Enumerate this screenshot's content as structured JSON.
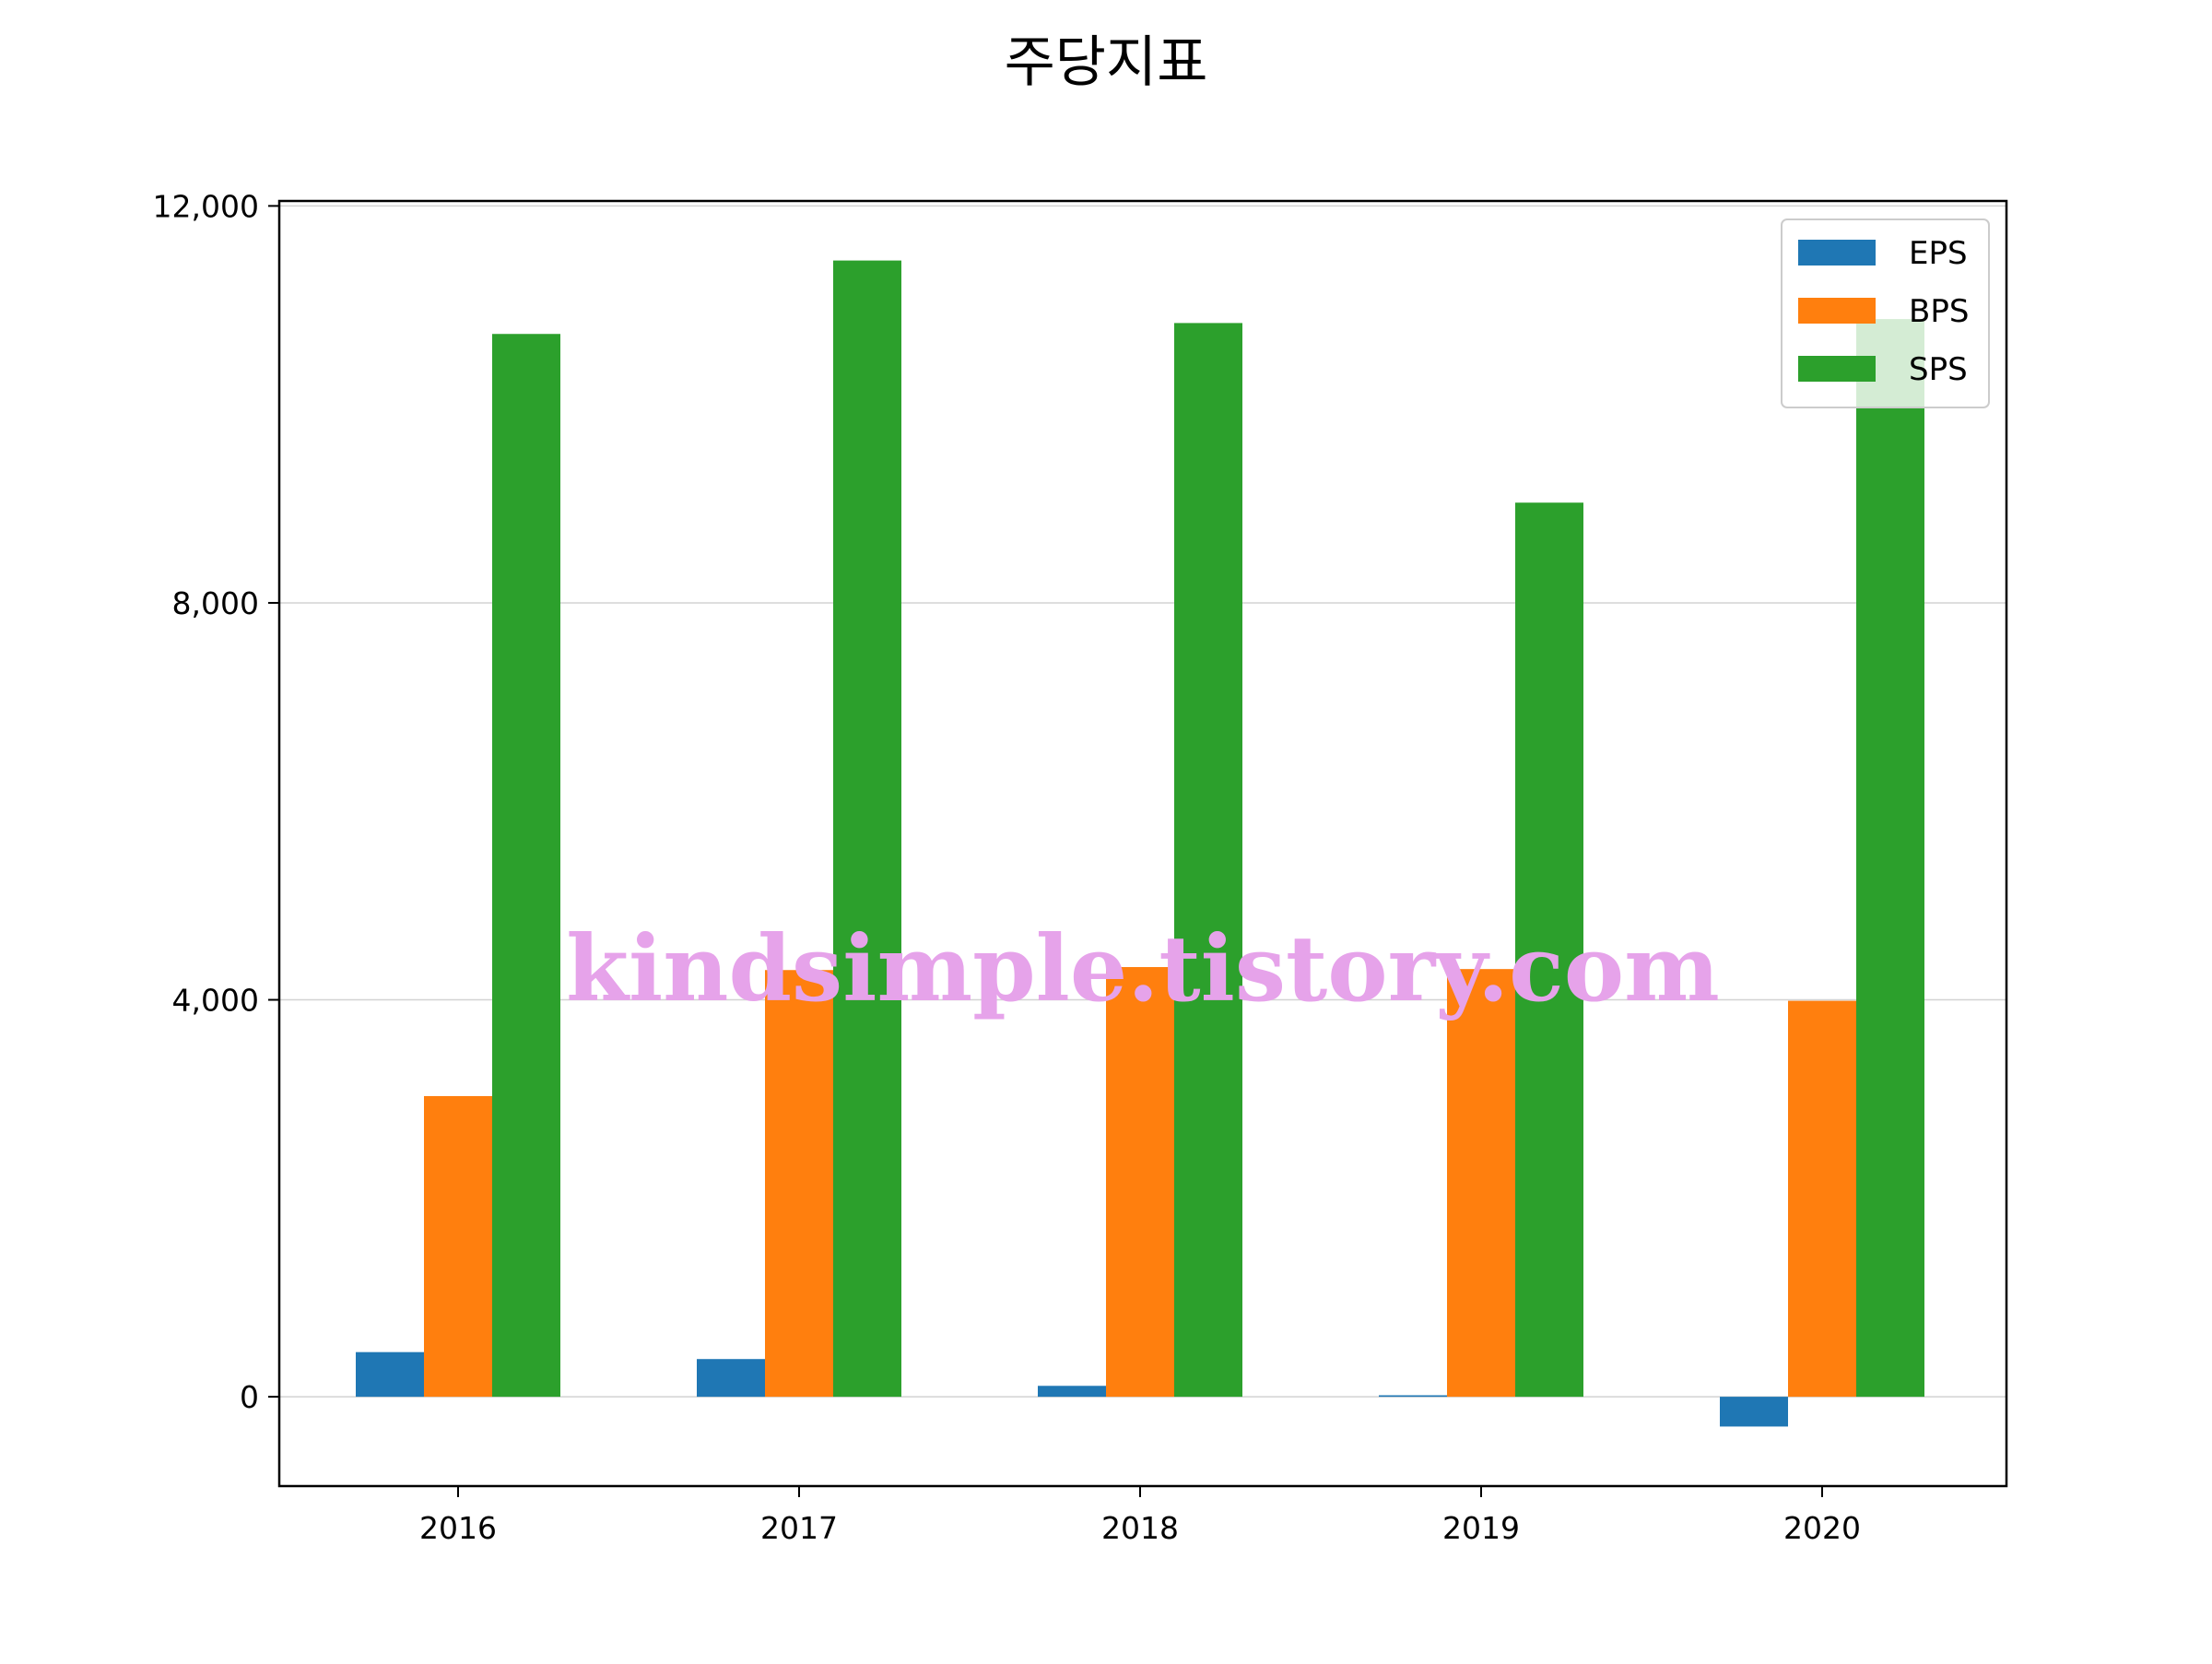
{
  "chart_data": {
    "type": "bar",
    "title": "주당지표",
    "xlabel": "",
    "ylabel": "",
    "categories": [
      "2016",
      "2017",
      "2018",
      "2019",
      "2020"
    ],
    "series": [
      {
        "name": "EPS",
        "color": "#1f77b4",
        "values": [
          450,
          380,
          110,
          15,
          -300
        ]
      },
      {
        "name": "BPS",
        "color": "#ff7f0e",
        "values": [
          3030,
          4300,
          4330,
          4310,
          3990
        ]
      },
      {
        "name": "SPS",
        "color": "#2ca02c",
        "values": [
          10710,
          11450,
          10820,
          9010,
          10860
        ]
      }
    ],
    "ylim": [
      -900,
      12050
    ],
    "yticks": [
      0,
      4000,
      8000,
      12000
    ],
    "ytick_labels": [
      "0",
      "4,000",
      "8,000",
      "12,000"
    ],
    "grid": "y",
    "legend_position": "top-right",
    "watermark": "kindsimple.tistory.com",
    "watermark_color": "#e6a3ea"
  }
}
